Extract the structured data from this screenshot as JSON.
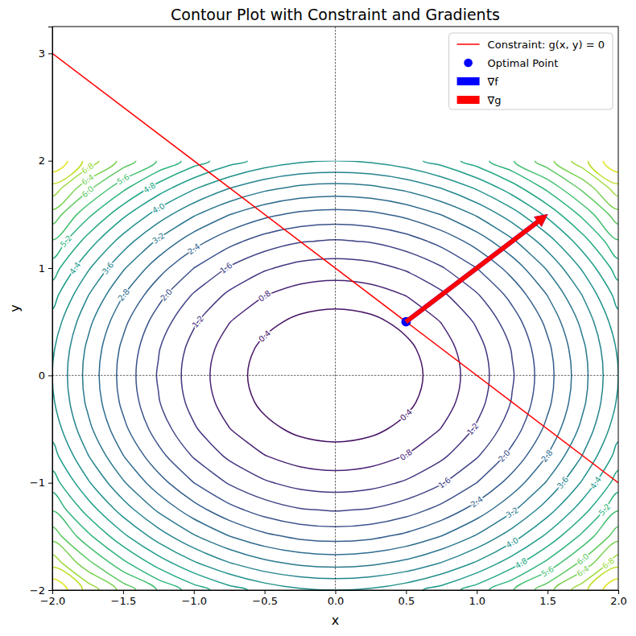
{
  "chart_data": {
    "type": "contour",
    "title": "Contour Plot with Constraint and Gradients",
    "x_label": "x",
    "y_label": "y",
    "xlim": [
      -2,
      2
    ],
    "ylim": [
      -2,
      3.25
    ],
    "xticks": [
      {
        "value": -2,
        "label": "−2.0"
      },
      {
        "value": -1.5,
        "label": "−1.5"
      },
      {
        "value": -1,
        "label": "−1.0"
      },
      {
        "value": -0.5,
        "label": "−0.5"
      },
      {
        "value": 0,
        "label": "0.0"
      },
      0.5,
      {
        "value": 1,
        "label": "1.0"
      },
      1.5,
      {
        "value": 2,
        "label": "2.0"
      }
    ],
    "yticks": [
      {
        "value": -2,
        "label": "−2"
      },
      {
        "value": -1,
        "label": "−1"
      },
      0,
      1,
      2,
      3
    ],
    "grid": false,
    "legend": "upper right",
    "contour": {
      "color": "viridis",
      "x": [
        -2,
        -1.75,
        -1.5,
        -1.25,
        -1,
        -0.75,
        -0.5,
        -0.25,
        0,
        0.25,
        0.5,
        0.75,
        1,
        1.25,
        1.5,
        1.75,
        2
      ],
      "y": [
        -2,
        -1.75,
        -1.5,
        -1.25,
        -1,
        -0.75,
        -0.5,
        -0.25,
        0,
        0.25,
        0.5,
        0.75,
        1,
        1.25,
        1.5,
        1.75,
        2
      ],
      "z": [
        [
          8,
          7.0625,
          6.25,
          5.5625,
          5,
          4.5625,
          4.25,
          4.0625,
          4,
          4.0625,
          4.25,
          4.5625,
          5,
          5.5625,
          6.25,
          7.0625,
          8
        ],
        [
          7.0625,
          6.125,
          5.3125,
          4.625,
          4.0625,
          3.625,
          3.3125,
          3.125,
          3.0625,
          3.125,
          3.3125,
          3.625,
          4.0625,
          4.625,
          5.3125,
          6.125,
          7.0625
        ],
        [
          6.25,
          5.3125,
          4.5,
          3.8125,
          3.25,
          2.8125,
          2.5,
          2.3125,
          2.25,
          2.3125,
          2.5,
          2.8125,
          3.25,
          3.8125,
          4.5,
          5.3125,
          6.25
        ],
        [
          5.5625,
          4.625,
          3.8125,
          3.125,
          2.5625,
          2.125,
          1.8125,
          1.625,
          1.5625,
          1.625,
          1.8125,
          2.125,
          2.5625,
          3.125,
          3.8125,
          4.625,
          5.5625
        ],
        [
          5,
          4.0625,
          3.25,
          2.5625,
          2,
          1.5625,
          1.25,
          1.0625,
          1,
          1.0625,
          1.25,
          1.5625,
          2,
          2.5625,
          3.25,
          4.0625,
          5
        ],
        [
          4.5625,
          3.625,
          2.8125,
          2.125,
          1.5625,
          1.125,
          0.8125,
          0.625,
          0.5625,
          0.625,
          0.8125,
          1.125,
          1.5625,
          2.125,
          2.8125,
          3.625,
          4.5625
        ],
        [
          4.25,
          3.3125,
          2.5,
          1.8125,
          1.25,
          0.8125,
          0.5,
          0.3125,
          0.25,
          0.3125,
          0.5,
          0.8125,
          1.25,
          1.8125,
          2.5,
          3.3125,
          4.25
        ],
        [
          4.0625,
          3.125,
          2.3125,
          1.625,
          1.0625,
          0.625,
          0.3125,
          0.125,
          0.0625,
          0.125,
          0.3125,
          0.625,
          1.0625,
          1.625,
          2.3125,
          3.125,
          4.0625
        ],
        [
          4,
          3.0625,
          2.25,
          1.5625,
          1,
          0.5625,
          0.25,
          0.0625,
          0,
          0.0625,
          0.25,
          0.5625,
          1,
          1.5625,
          2.25,
          3.0625,
          4
        ],
        [
          4.0625,
          3.125,
          2.3125,
          1.625,
          1.0625,
          0.625,
          0.3125,
          0.125,
          0.0625,
          0.125,
          0.3125,
          0.625,
          1.0625,
          1.625,
          2.3125,
          3.125,
          4.0625
        ],
        [
          4.25,
          3.3125,
          2.5,
          1.8125,
          1.25,
          0.8125,
          0.5,
          0.3125,
          0.25,
          0.3125,
          0.5,
          0.8125,
          1.25,
          1.8125,
          2.5,
          3.3125,
          4.25
        ],
        [
          4.5625,
          3.625,
          2.8125,
          2.125,
          1.5625,
          1.125,
          0.8125,
          0.625,
          0.5625,
          0.625,
          0.8125,
          1.125,
          1.5625,
          2.125,
          2.8125,
          3.625,
          4.5625
        ],
        [
          5,
          4.0625,
          3.25,
          2.5625,
          2,
          1.5625,
          1.25,
          1.0625,
          1,
          1.0625,
          1.25,
          1.5625,
          2,
          2.5625,
          3.25,
          4.0625,
          5
        ],
        [
          5.5625,
          4.625,
          3.8125,
          3.125,
          2.5625,
          2.125,
          1.8125,
          1.625,
          1.5625,
          1.625,
          1.8125,
          2.125,
          2.5625,
          3.125,
          3.8125,
          4.625,
          5.5625
        ],
        [
          6.25,
          5.3125,
          4.5,
          3.8125,
          3.25,
          2.8125,
          2.5,
          2.3125,
          2.25,
          2.3125,
          2.5,
          2.8125,
          3.25,
          3.8125,
          4.5,
          5.3125,
          6.25
        ],
        [
          7.0625,
          6.125,
          5.3125,
          4.625,
          4.0625,
          3.625,
          3.3125,
          3.125,
          3.0625,
          3.125,
          3.3125,
          3.625,
          4.0625,
          4.625,
          5.3125,
          6.125,
          7.0625
        ],
        [
          8,
          7.0625,
          6.25,
          5.5625,
          5,
          4.5625,
          4.25,
          4.0625,
          4,
          4.0625,
          4.25,
          4.5625,
          5,
          5.5625,
          6.25,
          7.0625,
          8
        ]
      ],
      "levels": [
        0.4,
        0.8,
        1.2,
        1.6,
        {
          "value": 2,
          "label": "2.0"
        },
        2.4,
        2.8,
        3.2,
        3.6,
        {
          "value": 4,
          "label": "4.0"
        },
        4.4,
        4.8,
        5.2,
        5.6,
        {
          "value": 6,
          "label": "6.0"
        },
        6.4,
        6.8,
        7.2,
        7.6
      ]
    },
    "reference_lines": {
      "x": [
        0
      ],
      "y": [
        0
      ],
      "color": "black",
      "line_style": "dashed"
    },
    "series": [
      {
        "name": "Constraint: g(x, y) = 0",
        "type": "line",
        "color": "red",
        "line_style": "solid",
        "x": [
          -2,
          2
        ],
        "values": [
          3,
          -1
        ]
      },
      {
        "name": "Optimal Point",
        "type": "scatter",
        "color": "blue",
        "marker": "circle",
        "x": [
          0.5
        ],
        "values": [
          0.5
        ]
      }
    ],
    "arrows": [
      {
        "name": "∇f",
        "color": "blue",
        "x": 0.5,
        "y": 0.5,
        "u": 1,
        "v": 1
      },
      {
        "name": "∇g",
        "color": "red",
        "x": 0.5,
        "y": 0.5,
        "u": 1,
        "v": 1
      }
    ]
  }
}
